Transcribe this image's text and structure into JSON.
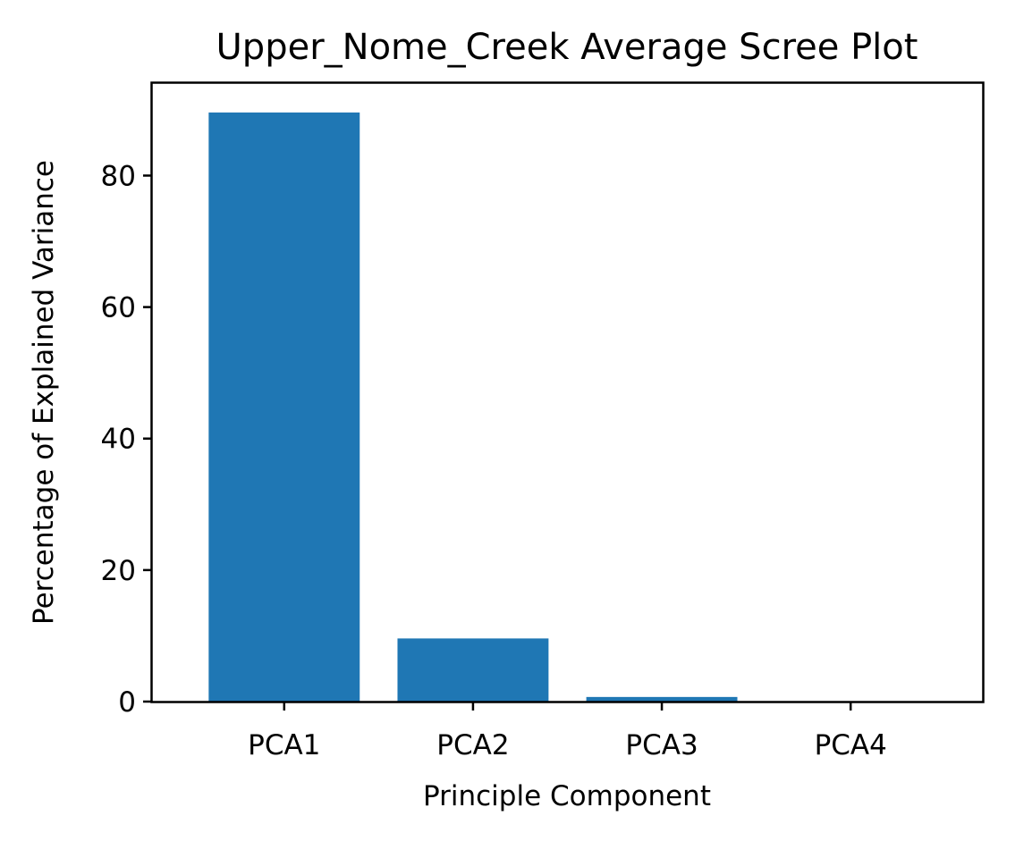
{
  "chart_data": {
    "type": "bar",
    "title": "Upper_Nome_Creek Average Scree Plot",
    "xlabel": "Principle Component",
    "ylabel": "Percentage of Explained Variance",
    "categories": [
      "PCA1",
      "PCA2",
      "PCA3",
      "PCA4"
    ],
    "values": [
      89.6,
      9.6,
      0.7,
      0.05
    ],
    "ylim": [
      0,
      94.2
    ],
    "yticks": [
      0,
      20,
      40,
      60,
      80
    ],
    "grid": false,
    "legend": "none",
    "bar_color": "#1f77b4"
  }
}
